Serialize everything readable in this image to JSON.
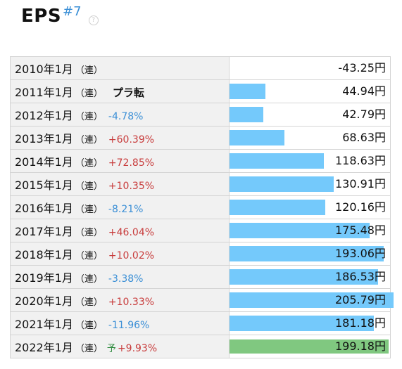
{
  "header": {
    "title": "EPS",
    "rank": "#7",
    "help_icon": "question-circle-icon"
  },
  "chart_data": {
    "type": "bar",
    "unit": "円",
    "max_value": 205.79,
    "colors": {
      "actual": "#74c9fb",
      "forecast": "#80c880",
      "up": "#c83c3c",
      "down": "#3b8fd6"
    },
    "rows": [
      {
        "period": "2010年1月",
        "type_label": "（連）",
        "change": "",
        "kind": "none",
        "forecast": "",
        "value": -43.25,
        "value_text": "-43.25円"
      },
      {
        "period": "2011年1月",
        "type_label": "（連）",
        "change": "プラ転",
        "kind": "flip",
        "forecast": "",
        "value": 44.94,
        "value_text": "44.94円"
      },
      {
        "period": "2012年1月",
        "type_label": "（連）",
        "change": "-4.78%",
        "kind": "down",
        "forecast": "",
        "value": 42.79,
        "value_text": "42.79円"
      },
      {
        "period": "2013年1月",
        "type_label": "（連）",
        "change": "+60.39%",
        "kind": "up",
        "forecast": "",
        "value": 68.63,
        "value_text": "68.63円"
      },
      {
        "period": "2014年1月",
        "type_label": "（連）",
        "change": "+72.85%",
        "kind": "up",
        "forecast": "",
        "value": 118.63,
        "value_text": "118.63円"
      },
      {
        "period": "2015年1月",
        "type_label": "（連）",
        "change": "+10.35%",
        "kind": "up",
        "forecast": "",
        "value": 130.91,
        "value_text": "130.91円"
      },
      {
        "period": "2016年1月",
        "type_label": "（連）",
        "change": "-8.21%",
        "kind": "down",
        "forecast": "",
        "value": 120.16,
        "value_text": "120.16円"
      },
      {
        "period": "2017年1月",
        "type_label": "（連）",
        "change": "+46.04%",
        "kind": "up",
        "forecast": "",
        "value": 175.48,
        "value_text": "175.48円"
      },
      {
        "period": "2018年1月",
        "type_label": "（連）",
        "change": "+10.02%",
        "kind": "up",
        "forecast": "",
        "value": 193.06,
        "value_text": "193.06円"
      },
      {
        "period": "2019年1月",
        "type_label": "（連）",
        "change": "-3.38%",
        "kind": "down",
        "forecast": "",
        "value": 186.53,
        "value_text": "186.53円"
      },
      {
        "period": "2020年1月",
        "type_label": "（連）",
        "change": "+10.33%",
        "kind": "up",
        "forecast": "",
        "value": 205.79,
        "value_text": "205.79円"
      },
      {
        "period": "2021年1月",
        "type_label": "（連）",
        "change": "-11.96%",
        "kind": "down",
        "forecast": "",
        "value": 181.18,
        "value_text": "181.18円"
      },
      {
        "period": "2022年1月",
        "type_label": "（連）",
        "change": "+9.93%",
        "kind": "up",
        "forecast": "予",
        "value": 199.18,
        "value_text": "199.18円"
      }
    ]
  }
}
